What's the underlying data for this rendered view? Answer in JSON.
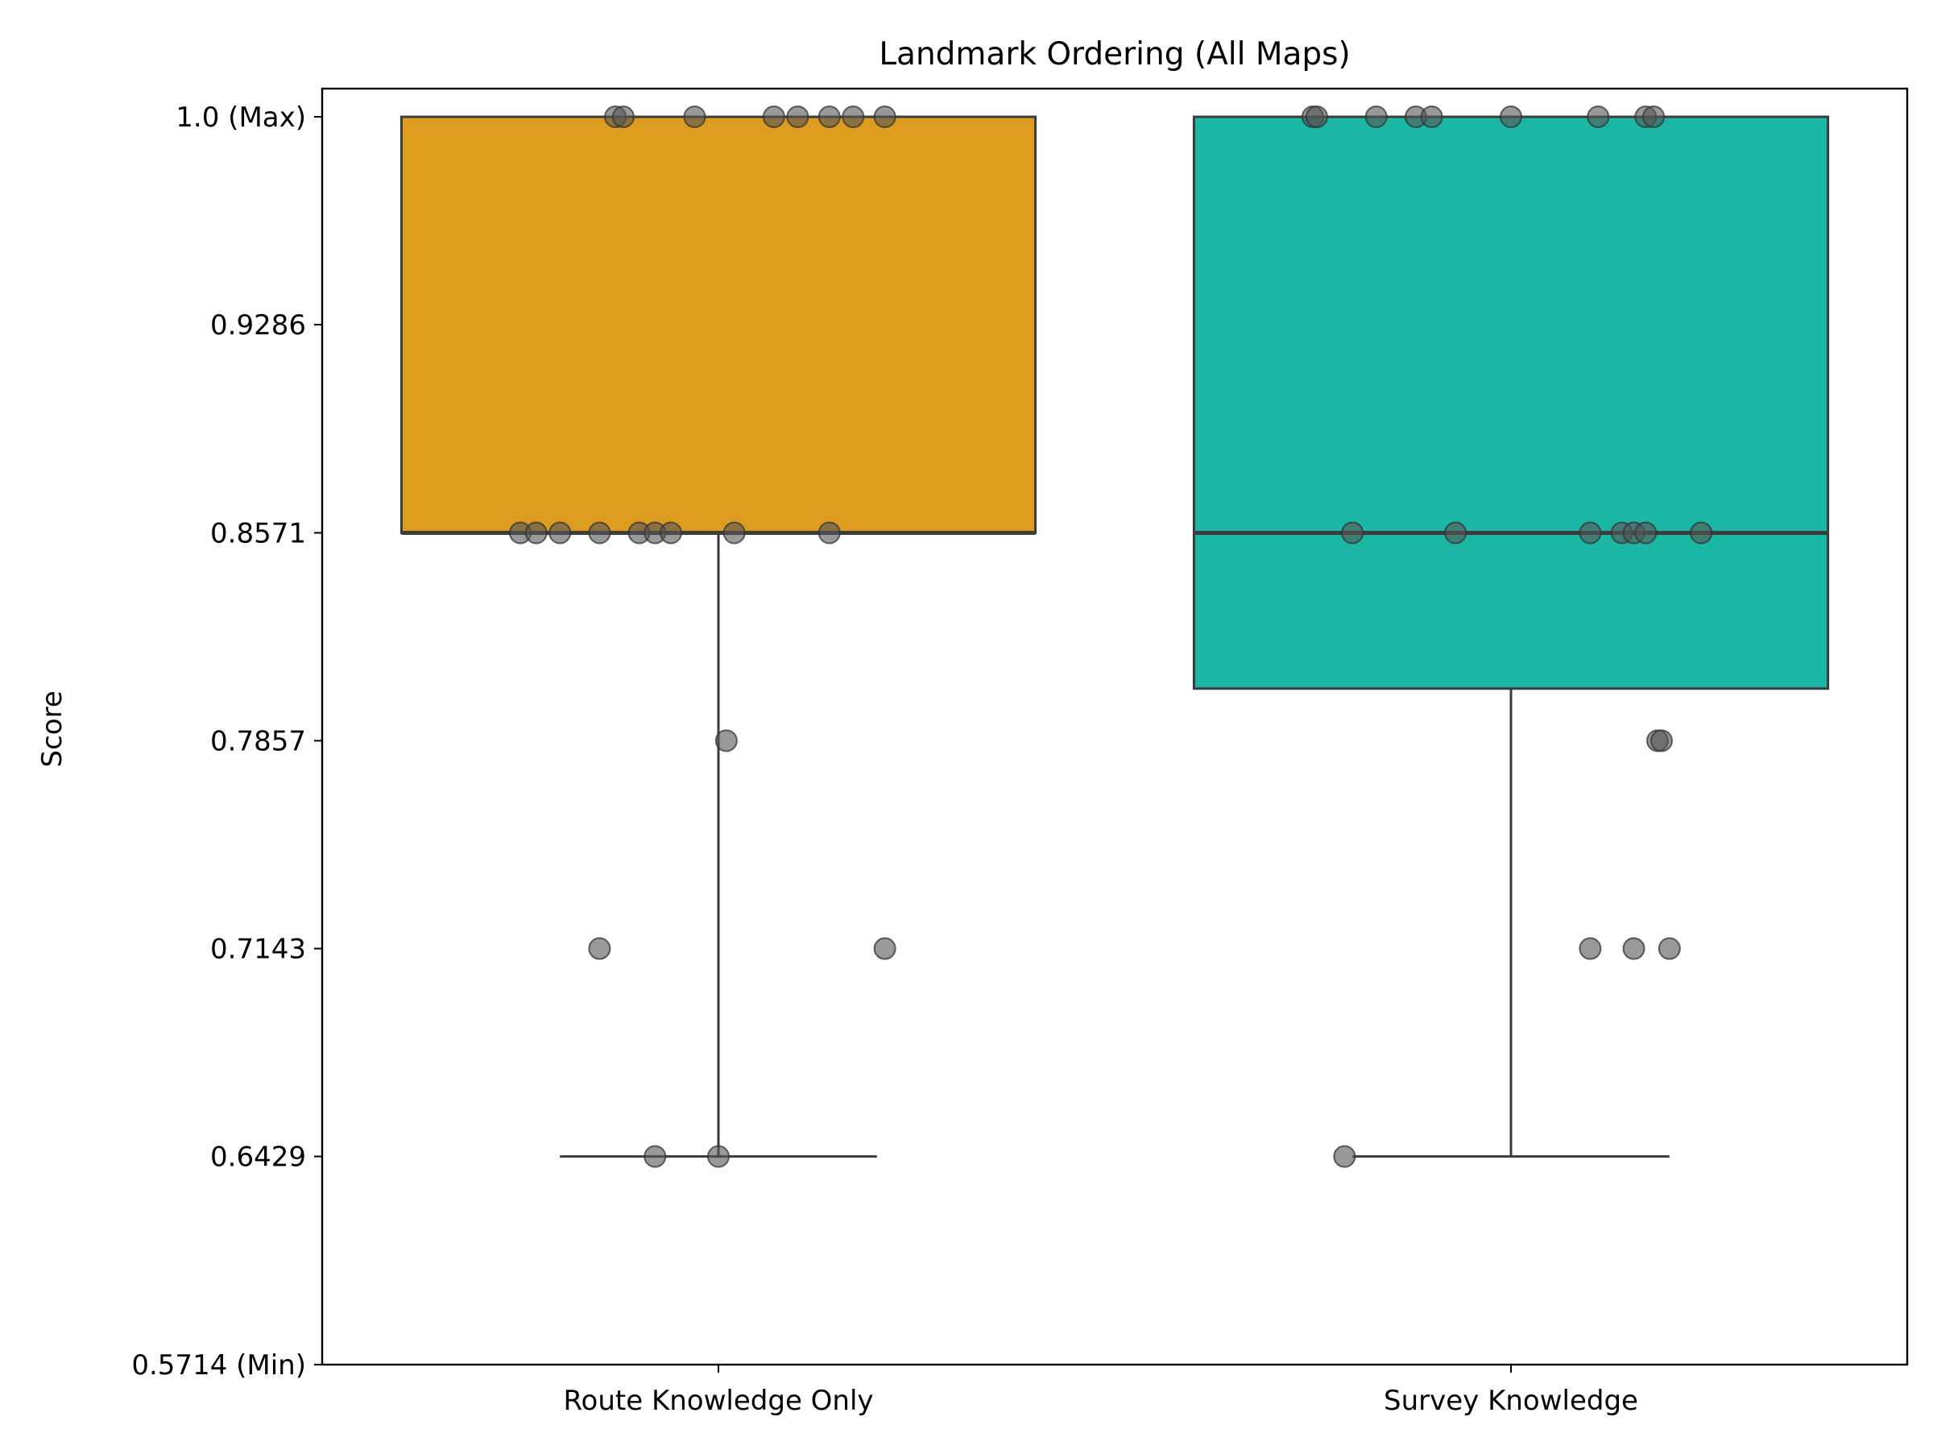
{
  "chart_data": {
    "type": "box",
    "title": "Landmark Ordering (All Maps)",
    "xlabel": "",
    "ylabel": "Score",
    "ylim": [
      0.5714,
      1.0
    ],
    "yticks": [
      1.0,
      0.9286,
      0.8571,
      0.7857,
      0.7143,
      0.6429,
      0.5714
    ],
    "yticklabels": [
      "1.0 (Max)",
      "0.9286",
      "0.8571",
      "0.7857",
      "0.7143",
      "0.6429",
      "0.5714 (Min)"
    ],
    "categories": [
      "Route Knowledge Only",
      "Survey Knowledge"
    ],
    "grid": false,
    "boxes": [
      {
        "category": "Route Knowledge Only",
        "color": "#dd9c20",
        "q1": 0.8571,
        "median": 0.8571,
        "q3": 1.0,
        "whisker_low": 0.6429,
        "whisker_high": 1.0,
        "points": [
          {
            "y": 1.0,
            "jitter": -0.13
          },
          {
            "y": 1.0,
            "jitter": -0.12
          },
          {
            "y": 1.0,
            "jitter": -0.03
          },
          {
            "y": 1.0,
            "jitter": 0.07
          },
          {
            "y": 1.0,
            "jitter": 0.1
          },
          {
            "y": 1.0,
            "jitter": 0.14
          },
          {
            "y": 1.0,
            "jitter": 0.17
          },
          {
            "y": 1.0,
            "jitter": 0.21
          },
          {
            "y": 0.8571,
            "jitter": -0.25
          },
          {
            "y": 0.8571,
            "jitter": -0.23
          },
          {
            "y": 0.8571,
            "jitter": -0.2
          },
          {
            "y": 0.8571,
            "jitter": -0.15
          },
          {
            "y": 0.8571,
            "jitter": -0.1
          },
          {
            "y": 0.8571,
            "jitter": -0.08
          },
          {
            "y": 0.8571,
            "jitter": -0.06
          },
          {
            "y": 0.8571,
            "jitter": 0.02
          },
          {
            "y": 0.8571,
            "jitter": 0.14
          },
          {
            "y": 0.7857,
            "jitter": 0.01
          },
          {
            "y": 0.7143,
            "jitter": -0.15
          },
          {
            "y": 0.7143,
            "jitter": 0.21
          },
          {
            "y": 0.6429,
            "jitter": -0.08
          },
          {
            "y": 0.6429,
            "jitter": 0.0
          }
        ]
      },
      {
        "category": "Survey Knowledge",
        "color": "#1cb6a4",
        "q1": 0.8036,
        "median": 0.8571,
        "q3": 1.0,
        "whisker_low": 0.6429,
        "whisker_high": 1.0,
        "points": [
          {
            "y": 1.0,
            "jitter": -0.25
          },
          {
            "y": 1.0,
            "jitter": -0.245
          },
          {
            "y": 1.0,
            "jitter": -0.17
          },
          {
            "y": 1.0,
            "jitter": -0.12
          },
          {
            "y": 1.0,
            "jitter": -0.1
          },
          {
            "y": 1.0,
            "jitter": 0.0
          },
          {
            "y": 1.0,
            "jitter": 0.11
          },
          {
            "y": 1.0,
            "jitter": 0.17
          },
          {
            "y": 1.0,
            "jitter": 0.18
          },
          {
            "y": 0.8571,
            "jitter": -0.2
          },
          {
            "y": 0.8571,
            "jitter": -0.07
          },
          {
            "y": 0.8571,
            "jitter": 0.1
          },
          {
            "y": 0.8571,
            "jitter": 0.14
          },
          {
            "y": 0.8571,
            "jitter": 0.155
          },
          {
            "y": 0.8571,
            "jitter": 0.17
          },
          {
            "y": 0.8571,
            "jitter": 0.24
          },
          {
            "y": 0.7857,
            "jitter": 0.185
          },
          {
            "y": 0.7857,
            "jitter": 0.19
          },
          {
            "y": 0.7143,
            "jitter": 0.1
          },
          {
            "y": 0.7143,
            "jitter": 0.155
          },
          {
            "y": 0.7143,
            "jitter": 0.2
          },
          {
            "y": 0.6429,
            "jitter": -0.21
          }
        ]
      }
    ]
  }
}
